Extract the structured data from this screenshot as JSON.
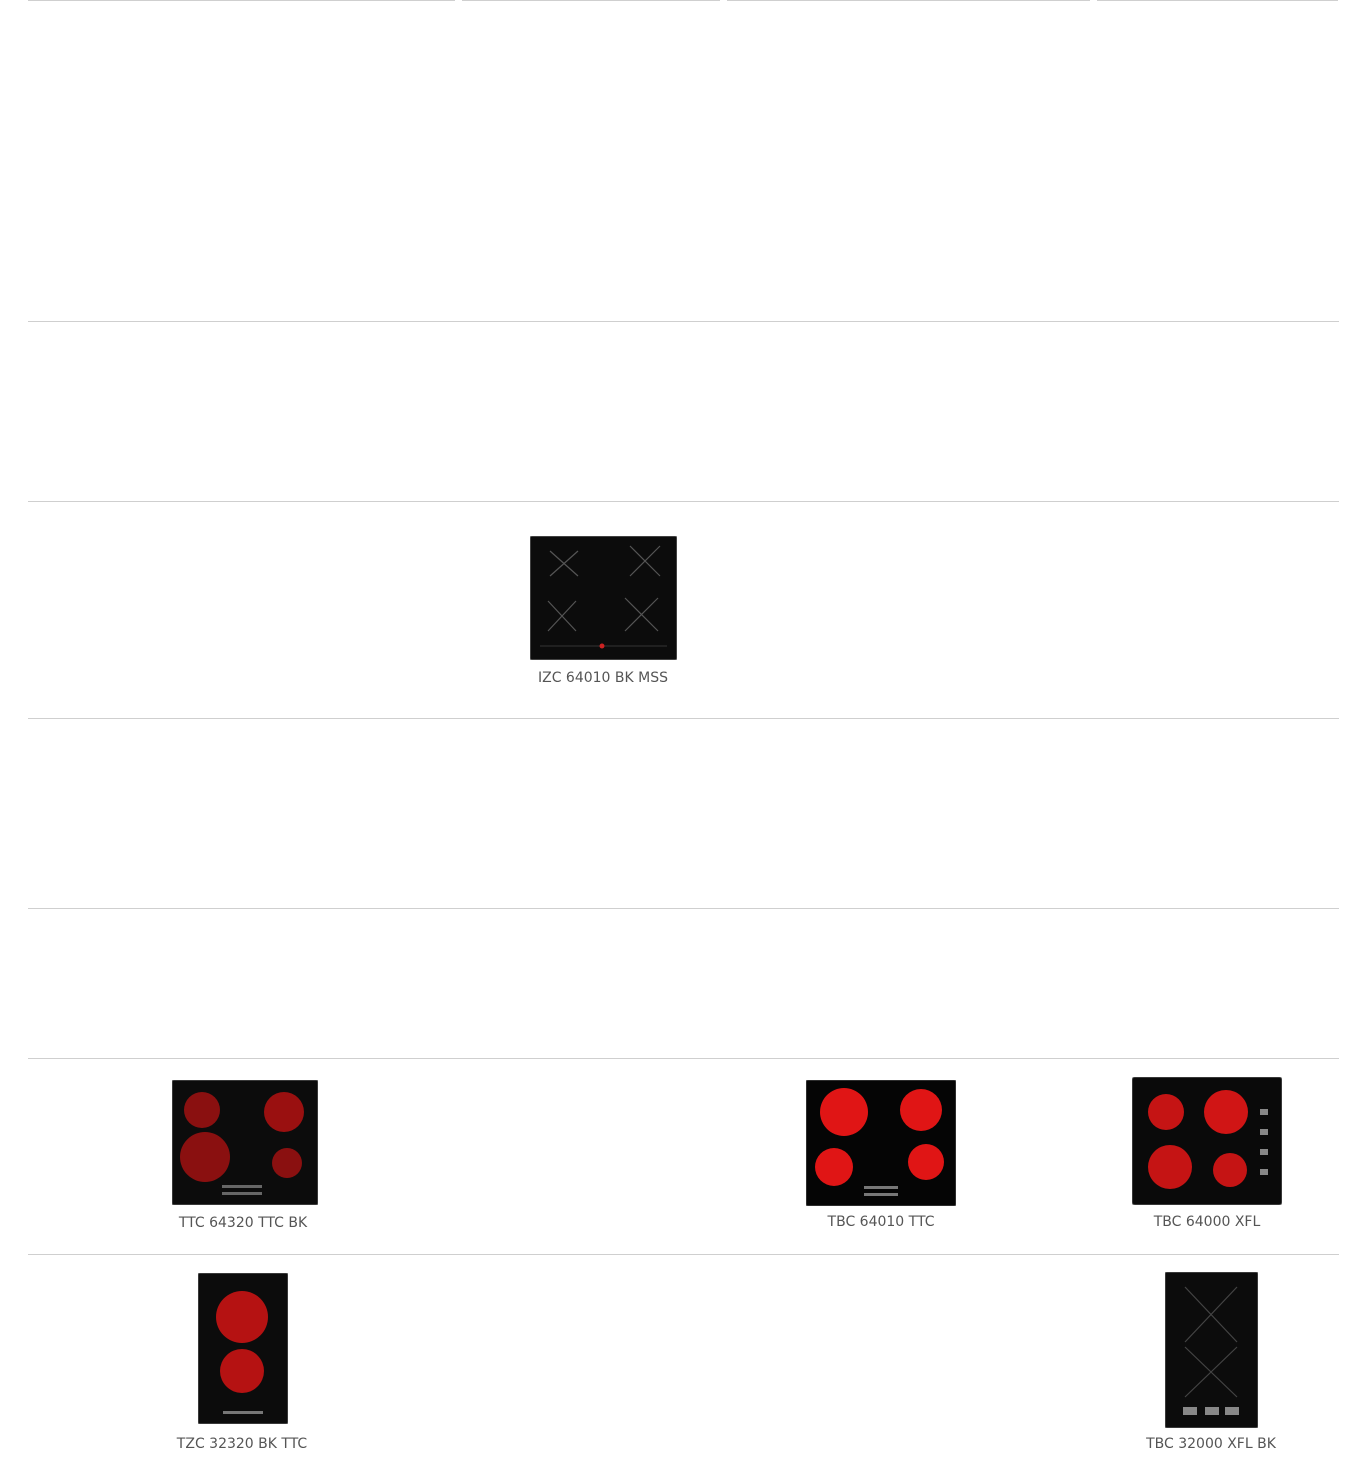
{
  "products": [
    {
      "name": "IZC 64010 BK MSS"
    },
    {
      "name": "TTC 64320 TTC BK"
    },
    {
      "name": "TBC 64010 TTC"
    },
    {
      "name": "TBC 64000 XFL"
    },
    {
      "name": "TZC 32320 BK TTC"
    },
    {
      "name": "TBC 32000 XFL BK"
    }
  ]
}
